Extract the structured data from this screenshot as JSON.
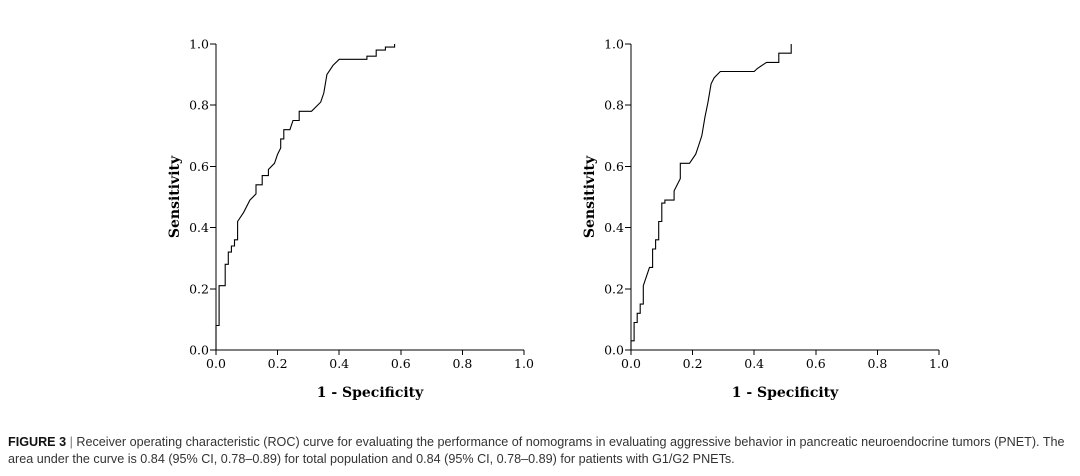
{
  "caption": {
    "label": "FIGURE 3",
    "separator": "|",
    "text": "Receiver operating characteristic (ROC) curve for evaluating the performance of nomograms in evaluating aggressive behavior in pancreatic neuroendocrine tumors (PNET). The area under the curve is 0.84 (95% CI, 0.78–0.89) for total population and 0.84 (95% CI, 0.78–0.89) for patients with G1/G2 PNETs."
  },
  "chart_data": [
    {
      "type": "line",
      "title": "",
      "xlabel": "1 - Specificity",
      "ylabel": "Sensitivity",
      "xlim": [
        0.0,
        1.0
      ],
      "ylim": [
        0.0,
        1.0
      ],
      "xticks": [
        "0.0",
        "0.2",
        "0.4",
        "0.6",
        "0.8",
        "1.0"
      ],
      "yticks": [
        "0.0",
        "0.2",
        "0.4",
        "0.6",
        "0.8",
        "1.0"
      ],
      "grid": false,
      "series": [
        {
          "name": "Total population",
          "x": [
            0.0,
            0.0,
            0.01,
            0.01,
            0.03,
            0.03,
            0.04,
            0.04,
            0.05,
            0.05,
            0.06,
            0.06,
            0.07,
            0.07,
            0.09,
            0.11,
            0.13,
            0.13,
            0.15,
            0.15,
            0.17,
            0.17,
            0.19,
            0.2,
            0.21,
            0.21,
            0.22,
            0.22,
            0.24,
            0.25,
            0.27,
            0.27,
            0.31,
            0.34,
            0.35,
            0.36,
            0.38,
            0.4,
            0.49,
            0.49,
            0.52,
            0.52,
            0.55,
            0.55,
            0.58,
            0.58
          ],
          "y": [
            0.0,
            0.08,
            0.08,
            0.21,
            0.21,
            0.28,
            0.28,
            0.32,
            0.32,
            0.34,
            0.34,
            0.36,
            0.36,
            0.42,
            0.45,
            0.49,
            0.51,
            0.54,
            0.54,
            0.57,
            0.57,
            0.59,
            0.61,
            0.64,
            0.66,
            0.69,
            0.69,
            0.72,
            0.72,
            0.75,
            0.75,
            0.78,
            0.78,
            0.81,
            0.84,
            0.9,
            0.93,
            0.95,
            0.95,
            0.96,
            0.96,
            0.98,
            0.98,
            0.99,
            0.99,
            1.0
          ]
        }
      ]
    },
    {
      "type": "line",
      "title": "",
      "xlabel": "1 - Specificity",
      "ylabel": "Sensitivity",
      "xlim": [
        0.0,
        1.0
      ],
      "ylim": [
        0.0,
        1.0
      ],
      "xticks": [
        "0.0",
        "0.2",
        "0.4",
        "0.6",
        "0.8",
        "1.0"
      ],
      "yticks": [
        "0.0",
        "0.2",
        "0.4",
        "0.6",
        "0.8",
        "1.0"
      ],
      "grid": false,
      "series": [
        {
          "name": "G1/G2 PNETs",
          "x": [
            0.0,
            0.0,
            0.01,
            0.01,
            0.02,
            0.02,
            0.03,
            0.03,
            0.04,
            0.04,
            0.05,
            0.06,
            0.07,
            0.07,
            0.08,
            0.08,
            0.09,
            0.09,
            0.1,
            0.1,
            0.11,
            0.11,
            0.14,
            0.14,
            0.15,
            0.16,
            0.16,
            0.19,
            0.21,
            0.22,
            0.23,
            0.24,
            0.25,
            0.26,
            0.27,
            0.29,
            0.4,
            0.41,
            0.44,
            0.44,
            0.48,
            0.48,
            0.52,
            0.52
          ],
          "y": [
            0.0,
            0.03,
            0.03,
            0.09,
            0.09,
            0.12,
            0.12,
            0.15,
            0.15,
            0.21,
            0.24,
            0.27,
            0.27,
            0.33,
            0.33,
            0.36,
            0.36,
            0.42,
            0.42,
            0.48,
            0.48,
            0.49,
            0.49,
            0.52,
            0.54,
            0.56,
            0.61,
            0.61,
            0.64,
            0.67,
            0.7,
            0.76,
            0.81,
            0.87,
            0.89,
            0.91,
            0.91,
            0.92,
            0.94,
            0.94,
            0.94,
            0.97,
            0.97,
            1.0
          ]
        }
      ]
    }
  ]
}
